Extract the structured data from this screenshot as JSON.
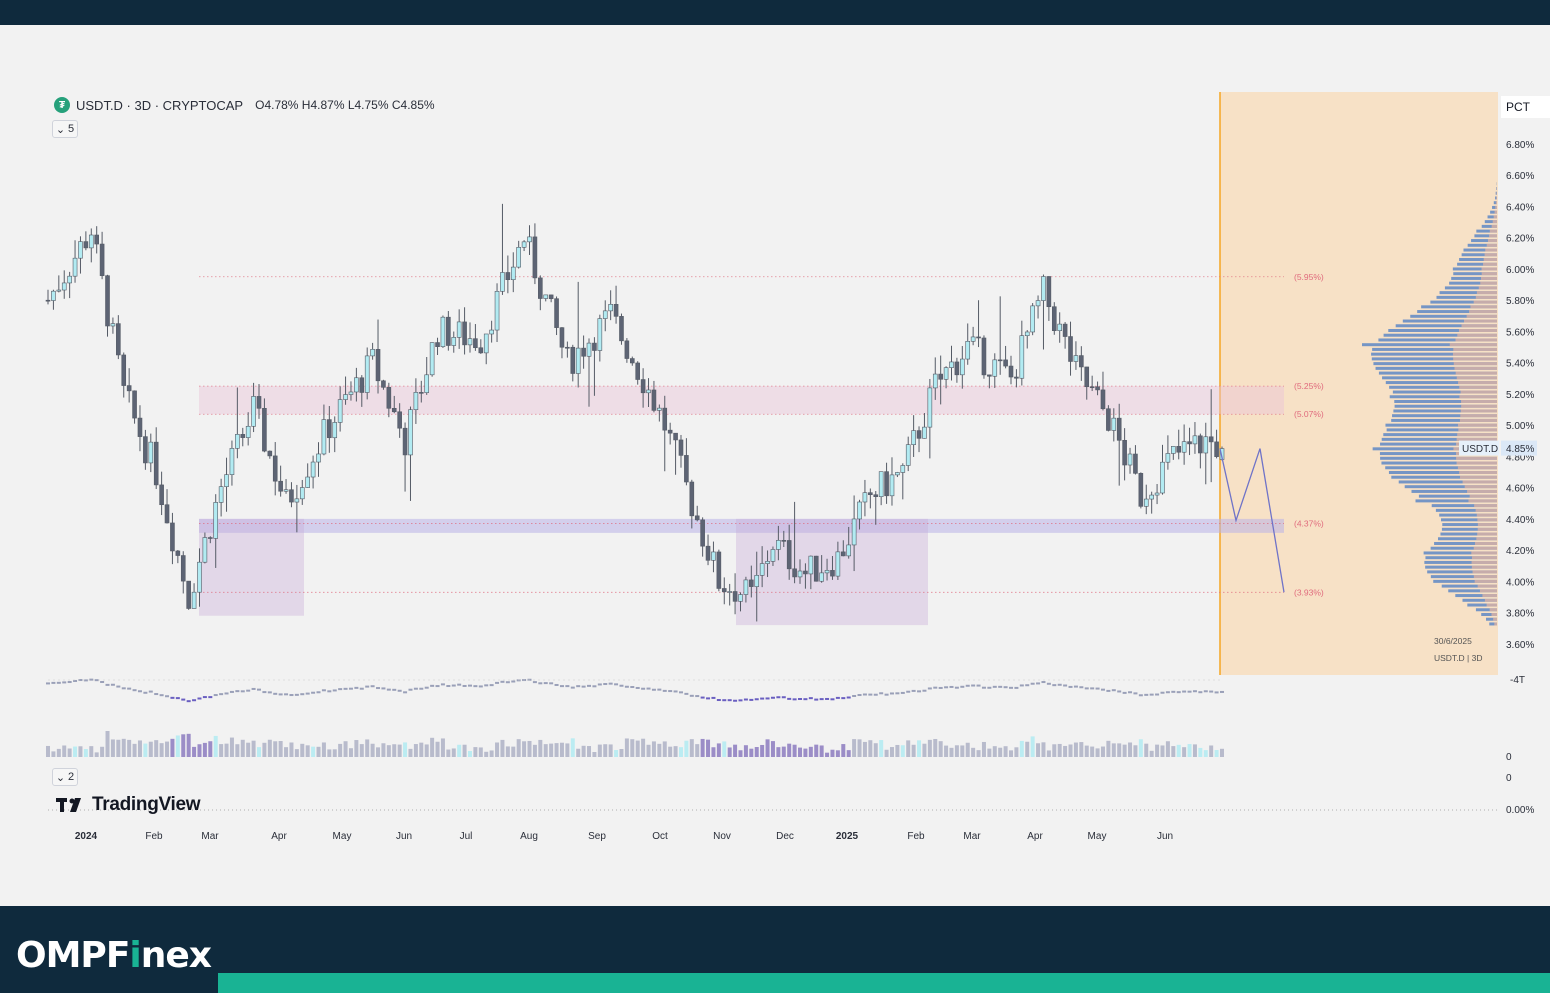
{
  "symbol": {
    "title": "USDT.D · 3D · CRYPTOCAP",
    "ohlc": "O4.78% H4.87% L4.75% C4.85%",
    "open": "4.78%",
    "high": "4.87%",
    "low": "4.75%",
    "close": "4.85%"
  },
  "controls": {
    "indicators_count": "5",
    "pane_count": "2"
  },
  "brand": {
    "tradingview": "TradingView",
    "omp_prefix": "OMPF",
    "omp_i": "i",
    "omp_suffix": "nex"
  },
  "colors": {
    "up_candle": "#b2ebf2",
    "down_candle": "#5d6474",
    "wick": "#555b66",
    "demand_zone": "#c7a7d6",
    "resistance_zone": "#e8c4d6",
    "support_band": "#b9b3e8",
    "projection_area": "#f7dcba",
    "projection_line": "#f5a623",
    "path": "#6f73c8",
    "level_label": "#e06b7d",
    "accent": "#19b394"
  },
  "chart_data": {
    "type": "candlestick",
    "title": "USDT.D · 3D · CRYPTOCAP",
    "ylabel": "PCT",
    "ylim": [
      3.5,
      7.0
    ],
    "x_ticks": [
      "2024",
      "Feb",
      "Mar",
      "Apr",
      "May",
      "Jun",
      "Jul",
      "Aug",
      "Sep",
      "Oct",
      "Nov",
      "Dec",
      "2025",
      "Feb",
      "Mar",
      "Apr",
      "May",
      "Jun"
    ],
    "y_ticks": [
      "6.80%",
      "6.60%",
      "6.40%",
      "6.20%",
      "6.00%",
      "5.80%",
      "5.60%",
      "5.40%",
      "5.20%",
      "5.00%",
      "4.80%",
      "4.60%",
      "4.40%",
      "4.20%",
      "4.00%",
      "3.80%",
      "3.60%"
    ],
    "y_tick_values": [
      6.8,
      6.6,
      6.4,
      6.2,
      6.0,
      5.8,
      5.6,
      5.4,
      5.2,
      5.0,
      4.8,
      4.6,
      4.4,
      4.2,
      4.0,
      3.8,
      3.6
    ],
    "last_price_label": "USDT.D",
    "last_price": "4.85%",
    "levels": [
      {
        "label": "(5.95%)",
        "value": 5.95
      },
      {
        "label": "(5.25%)",
        "value": 5.25
      },
      {
        "label": "(5.07%)",
        "value": 5.07
      },
      {
        "label": "(4.37%)",
        "value": 4.37
      },
      {
        "label": "(3.93%)",
        "value": 3.93
      }
    ],
    "projection_path": [
      4.85,
      4.39,
      4.85,
      3.93
    ],
    "volume_profile_date": "30/6/2025",
    "volume_profile_label": "USDT.D | 3D",
    "oscillator_axis": "-4T",
    "volume_axis": [
      "0",
      "0"
    ],
    "bottom_axis": "0.00%",
    "anchors": [
      [
        0,
        5.8
      ],
      [
        8,
        6.25
      ],
      [
        14,
        5.2
      ],
      [
        20,
        4.7
      ],
      [
        26,
        3.9
      ],
      [
        32,
        4.6
      ],
      [
        38,
        5.1
      ],
      [
        44,
        4.5
      ],
      [
        52,
        5.0
      ],
      [
        60,
        5.4
      ],
      [
        66,
        4.9
      ],
      [
        72,
        5.6
      ],
      [
        80,
        5.55
      ],
      [
        88,
        6.2
      ],
      [
        96,
        5.4
      ],
      [
        104,
        5.7
      ],
      [
        110,
        5.3
      ],
      [
        114,
        5.0
      ],
      [
        118,
        4.6
      ],
      [
        124,
        4.0
      ],
      [
        130,
        3.9
      ],
      [
        134,
        4.25
      ],
      [
        140,
        4.05
      ],
      [
        146,
        4.15
      ],
      [
        152,
        4.55
      ],
      [
        158,
        4.7
      ],
      [
        164,
        5.25
      ],
      [
        170,
        5.5
      ],
      [
        178,
        5.3
      ],
      [
        184,
        5.85
      ],
      [
        190,
        5.35
      ],
      [
        196,
        5.05
      ],
      [
        202,
        4.55
      ],
      [
        208,
        4.8
      ],
      [
        214,
        4.9
      ],
      [
        217,
        4.85
      ]
    ]
  }
}
